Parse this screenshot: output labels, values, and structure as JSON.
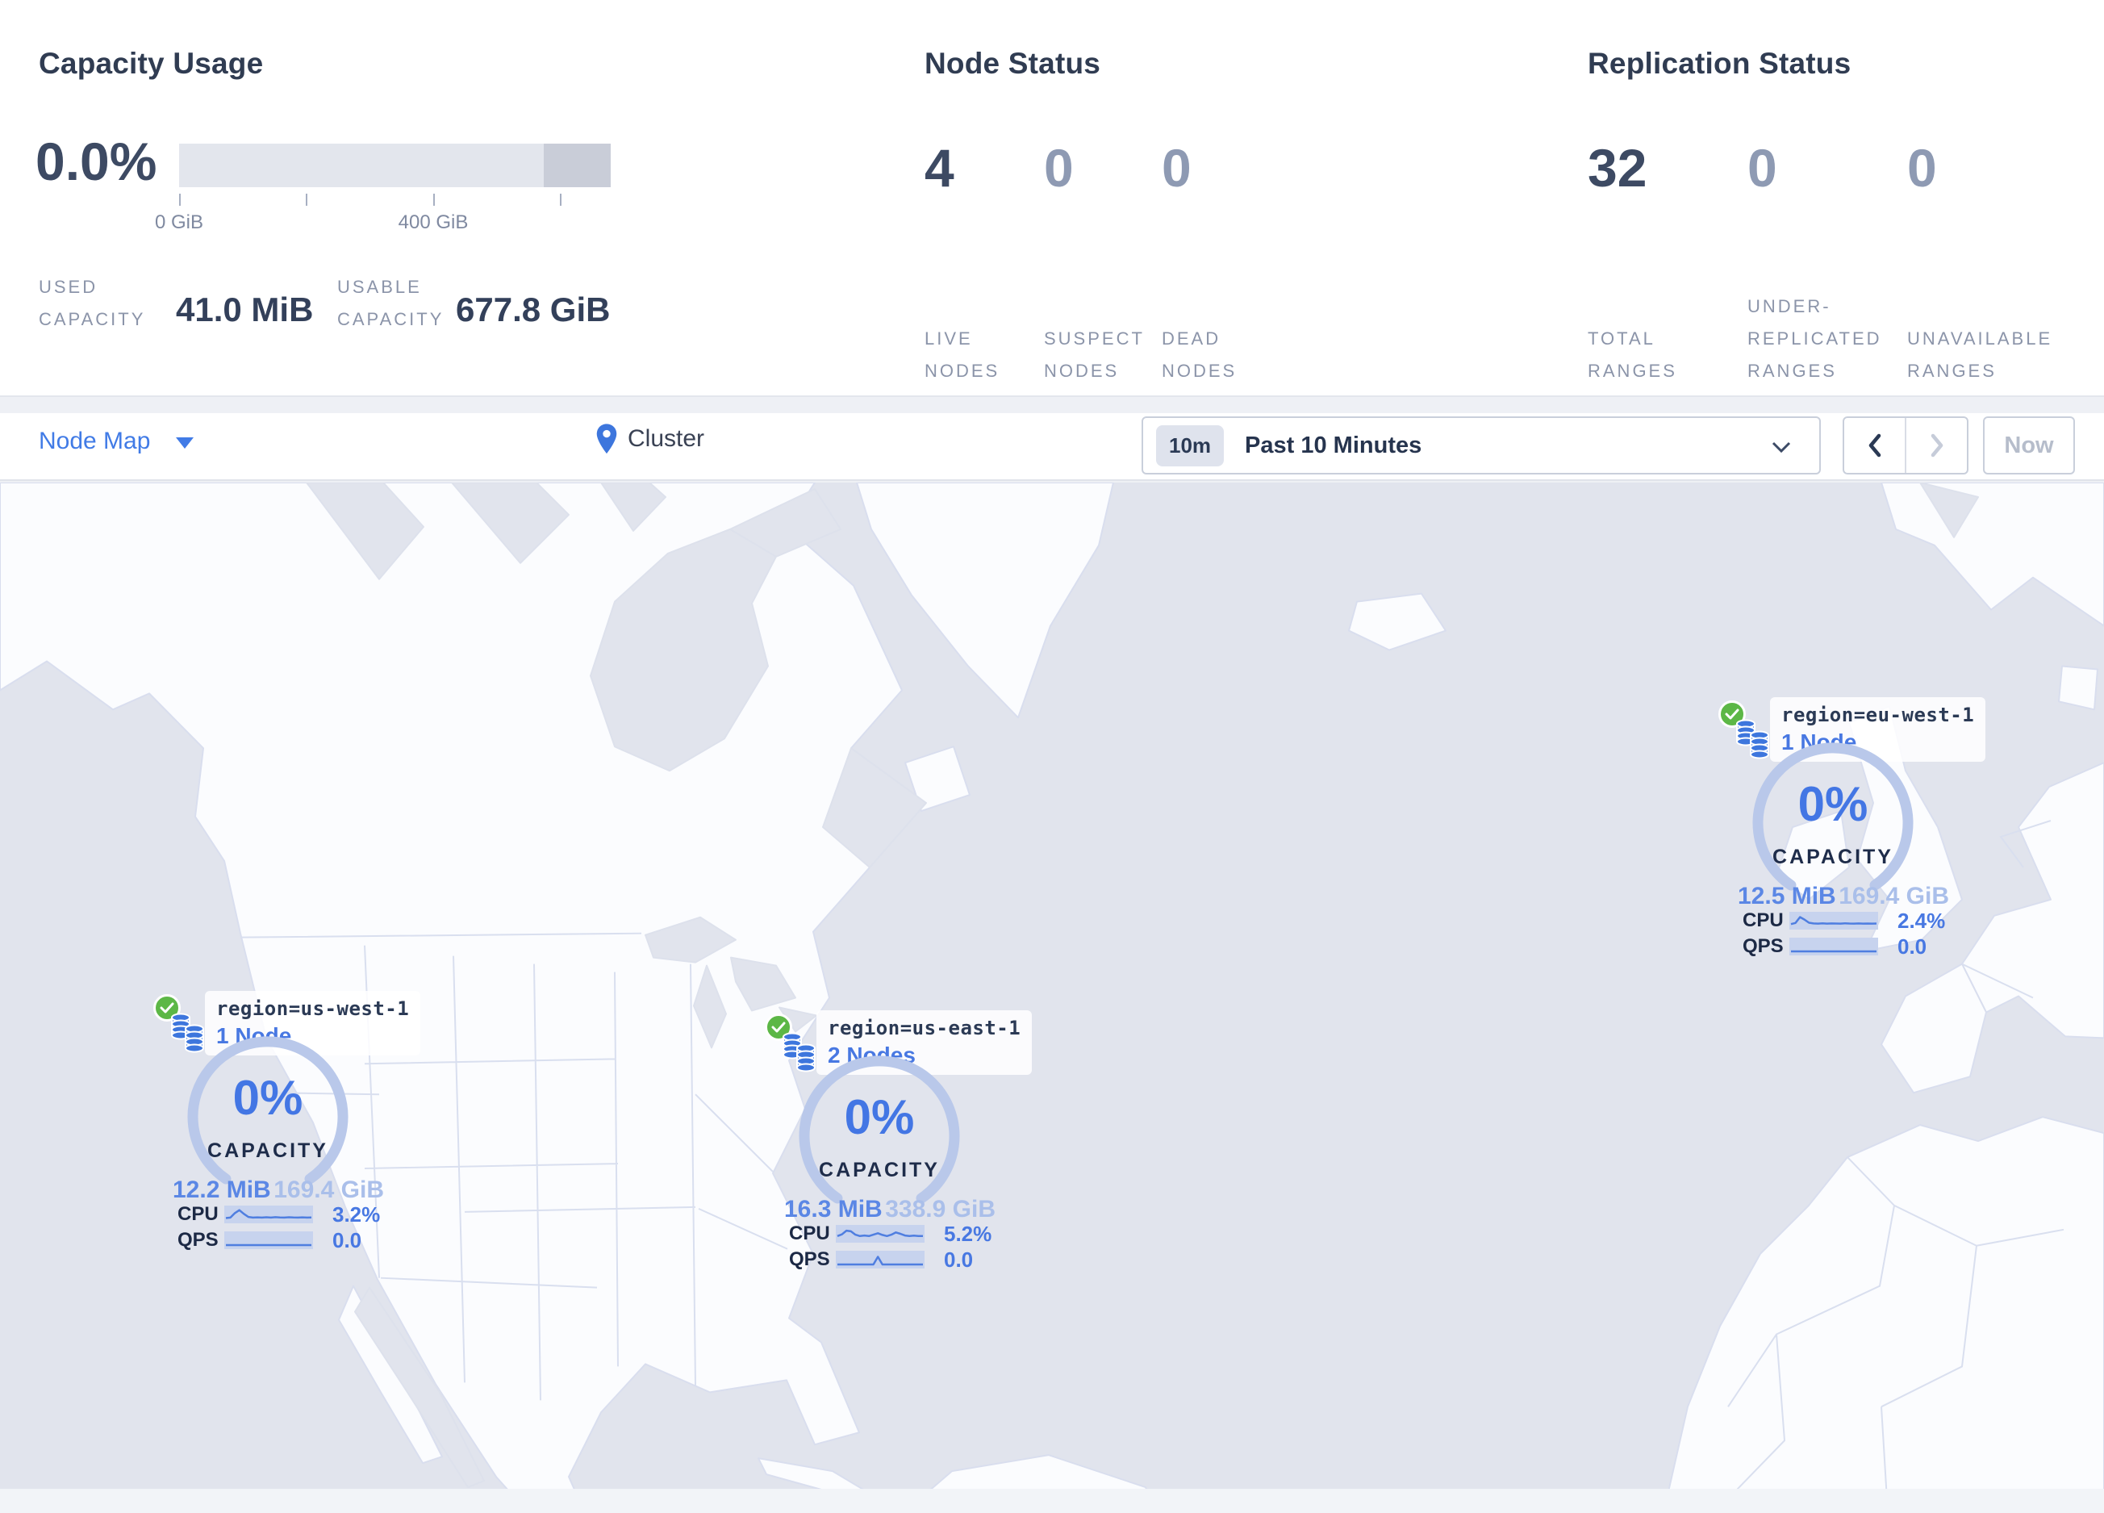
{
  "summary": {
    "capacity": {
      "title": "Capacity Usage",
      "percent": "0.0%",
      "ticks": [
        "0 GiB",
        "400 GiB"
      ],
      "stats": [
        {
          "label": "USED CAPACITY",
          "value": "41.0 MiB"
        },
        {
          "label": "USABLE CAPACITY",
          "value": "677.8 GiB"
        }
      ]
    },
    "nodes": {
      "title": "Node Status",
      "metrics": [
        {
          "value": "4",
          "label": "LIVE NODES"
        },
        {
          "value": "0",
          "label": "SUSPECT NODES"
        },
        {
          "value": "0",
          "label": "DEAD NODES"
        }
      ]
    },
    "replication": {
      "title": "Replication Status",
      "metrics": [
        {
          "value": "32",
          "label": "TOTAL RANGES"
        },
        {
          "value": "0",
          "label": "UNDER-REPLICATED RANGES"
        },
        {
          "value": "0",
          "label": "UNAVAILABLE RANGES"
        }
      ]
    }
  },
  "toolbar": {
    "view_selector": "Node Map",
    "breadcrumb": "Cluster",
    "time_badge": "10m",
    "time_range": "Past 10 Minutes",
    "now_button": "Now"
  },
  "markers": [
    {
      "region": "region=us-west-1",
      "nodes": "1 Node",
      "capacity_pct": "0%",
      "capacity_label": "CAPACITY",
      "used": "12.2 MiB",
      "total": "169.4 GiB",
      "cpu_label": "CPU",
      "cpu_value": "3.2%",
      "qps_label": "QPS",
      "qps_value": "0.0",
      "cpu_points": [
        0.18,
        0.22,
        0.62,
        0.88,
        0.55,
        0.28,
        0.22,
        0.24,
        0.22,
        0.25,
        0.22,
        0.26,
        0.23,
        0.22,
        0.25,
        0.23,
        0.22,
        0.24,
        0.22,
        0.23
      ],
      "qps_points": [
        0.07,
        0.07,
        0.07,
        0.07,
        0.07,
        0.07,
        0.07,
        0.07,
        0.07,
        0.07,
        0.07,
        0.07,
        0.07,
        0.07,
        0.07,
        0.07,
        0.07,
        0.07,
        0.07,
        0.07
      ]
    },
    {
      "region": "region=us-east-1",
      "nodes": "2 Nodes",
      "capacity_pct": "0%",
      "capacity_label": "CAPACITY",
      "used": "16.3 MiB",
      "total": "338.9 GiB",
      "cpu_label": "CPU",
      "cpu_value": "5.2%",
      "qps_label": "QPS",
      "qps_value": "0.0",
      "cpu_points": [
        0.3,
        0.45,
        0.78,
        0.72,
        0.42,
        0.3,
        0.35,
        0.3,
        0.42,
        0.55,
        0.4,
        0.3,
        0.42,
        0.62,
        0.5,
        0.35,
        0.3,
        0.34,
        0.31,
        0.3
      ],
      "qps_points": [
        0.07,
        0.07,
        0.07,
        0.07,
        0.07,
        0.07,
        0.07,
        0.07,
        0.07,
        0.75,
        0.07,
        0.07,
        0.07,
        0.07,
        0.07,
        0.07,
        0.07,
        0.07,
        0.07,
        0.07
      ]
    },
    {
      "region": "region=eu-west-1",
      "nodes": "1 Node",
      "capacity_pct": "0%",
      "capacity_label": "CAPACITY",
      "used": "12.5 MiB",
      "total": "169.4 GiB",
      "cpu_label": "CPU",
      "cpu_value": "2.4%",
      "qps_label": "QPS",
      "qps_value": "0.0",
      "cpu_points": [
        0.2,
        0.3,
        0.82,
        0.6,
        0.32,
        0.26,
        0.24,
        0.27,
        0.24,
        0.26,
        0.25,
        0.24,
        0.27,
        0.25,
        0.24,
        0.26,
        0.24,
        0.25,
        0.24,
        0.25
      ],
      "qps_points": [
        0.07,
        0.07,
        0.07,
        0.07,
        0.07,
        0.07,
        0.07,
        0.07,
        0.07,
        0.07,
        0.07,
        0.07,
        0.07,
        0.07,
        0.07,
        0.07,
        0.07,
        0.07,
        0.07,
        0.07
      ]
    }
  ],
  "colors": {
    "accent_blue": "#4376e4",
    "status_green": "#5cb746",
    "ocean": "#e1e4ed",
    "land": "#fbfcfe",
    "gauge_arc": "#b9c8ea",
    "dark_navy": "#2b3a55"
  }
}
